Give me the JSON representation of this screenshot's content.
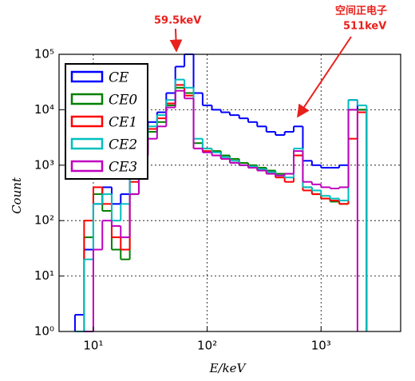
{
  "chart_data": {
    "type": "histogram",
    "xlabel": "E/keV",
    "ylabel": "Count",
    "annotations": [
      "59.5keV",
      "空间正电子",
      "511keV"
    ],
    "bins": [
      6.9,
      8.3,
      10,
      12,
      14.5,
      17.4,
      20.9,
      25.1,
      30.2,
      36.3,
      43.7,
      52.5,
      63.1,
      75.9,
      91.2,
      110,
      132,
      158,
      191,
      229,
      275,
      331,
      398,
      479,
      575,
      692,
      832,
      1000,
      1202,
      1445,
      1738,
      2089,
      2512
    ],
    "series": [
      {
        "name": "CE",
        "color": "#0000ff",
        "values": [
          2,
          30,
          200,
          400,
          200,
          300,
          2000,
          4000,
          6000,
          9000,
          20000,
          60000,
          100000,
          20000,
          12000,
          10000,
          9000,
          8000,
          7000,
          6000,
          5000,
          4000,
          3500,
          4000,
          5000,
          1200,
          1000,
          900,
          900,
          1000,
          15000,
          10000
        ]
      },
      {
        "name": "CE0",
        "color": "#008000",
        "values": [
          1,
          50,
          300,
          150,
          30,
          20,
          300,
          2000,
          4000,
          6000,
          12000,
          25000,
          20000,
          2500,
          2000,
          1800,
          1500,
          1300,
          1100,
          1000,
          900,
          800,
          700,
          700,
          1500,
          400,
          300,
          250,
          220,
          200,
          10000,
          10000
        ]
      },
      {
        "name": "CE1",
        "color": "#ff0000",
        "values": [
          1,
          100,
          400,
          200,
          50,
          30,
          500,
          2500,
          4500,
          7000,
          13000,
          28000,
          18000,
          2000,
          1800,
          1500,
          1300,
          1200,
          1000,
          900,
          800,
          700,
          600,
          500,
          1500,
          350,
          300,
          250,
          230,
          200,
          3000,
          9000
        ]
      },
      {
        "name": "CE2",
        "color": "#00bfbf",
        "values": [
          1,
          20,
          200,
          300,
          100,
          200,
          1000,
          3000,
          5000,
          8000,
          15000,
          35000,
          25000,
          3000,
          2000,
          1700,
          1400,
          1200,
          1000,
          950,
          850,
          750,
          650,
          600,
          2000,
          400,
          350,
          280,
          250,
          230,
          15000,
          12000
        ]
      },
      {
        "name": "CE3",
        "color": "#bf00bf",
        "values": [
          null,
          1,
          30,
          100,
          80,
          50,
          300,
          1500,
          3000,
          5000,
          11000,
          22000,
          16000,
          2000,
          1700,
          1500,
          1300,
          1100,
          1000,
          900,
          800,
          700,
          650,
          700,
          1800,
          500,
          450,
          400,
          380,
          400,
          10000,
          null
        ]
      }
    ],
    "xlim": [
      5,
      5000
    ],
    "ylim": [
      1,
      100000
    ],
    "xticks": [
      {
        "value": 10,
        "label": "10¹"
      },
      {
        "value": 100,
        "label": "10²"
      },
      {
        "value": 1000,
        "label": "10³"
      }
    ],
    "yticks": [
      {
        "value": 1,
        "label": "10⁰"
      },
      {
        "value": 10,
        "label": "10¹"
      },
      {
        "value": 100,
        "label": "10²"
      },
      {
        "value": 1000,
        "label": "10³"
      },
      {
        "value": 10000,
        "label": "10⁴"
      },
      {
        "value": 100000,
        "label": "10⁵"
      }
    ],
    "xscale": "log",
    "yscale": "log",
    "grid": true,
    "legend": "upper left"
  }
}
